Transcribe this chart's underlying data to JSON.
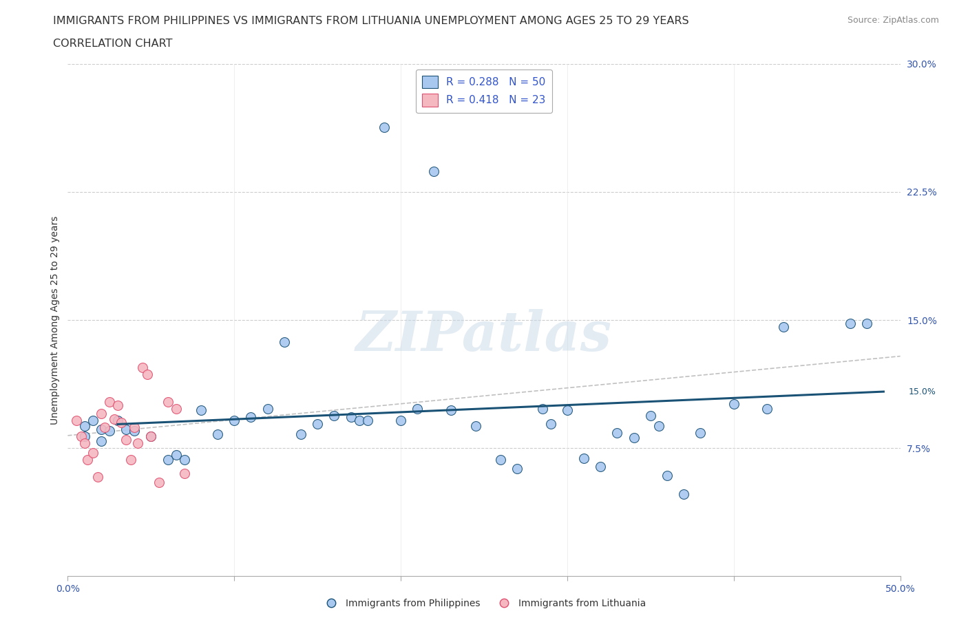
{
  "title_line1": "IMMIGRANTS FROM PHILIPPINES VS IMMIGRANTS FROM LITHUANIA UNEMPLOYMENT AMONG AGES 25 TO 29 YEARS",
  "title_line2": "CORRELATION CHART",
  "source": "Source: ZipAtlas.com",
  "ylabel": "Unemployment Among Ages 25 to 29 years",
  "xlim": [
    0.0,
    0.5
  ],
  "ylim": [
    0.0,
    0.3
  ],
  "philippines_R": 0.288,
  "philippines_N": 50,
  "lithuania_R": 0.418,
  "lithuania_N": 23,
  "philippines_color": "#a8c8f0",
  "philippines_line_color": "#1a5276",
  "lithuania_color": "#f5b7c0",
  "lithuania_line_color": "#e05070",
  "philippines_scatter_x": [
    0.01,
    0.01,
    0.015,
    0.02,
    0.02,
    0.025,
    0.03,
    0.035,
    0.04,
    0.05,
    0.06,
    0.065,
    0.07,
    0.08,
    0.09,
    0.1,
    0.11,
    0.12,
    0.13,
    0.14,
    0.15,
    0.16,
    0.17,
    0.175,
    0.18,
    0.19,
    0.2,
    0.21,
    0.22,
    0.23,
    0.245,
    0.26,
    0.27,
    0.285,
    0.29,
    0.3,
    0.31,
    0.32,
    0.33,
    0.34,
    0.35,
    0.355,
    0.36,
    0.37,
    0.38,
    0.4,
    0.42,
    0.43,
    0.47,
    0.48
  ],
  "philippines_scatter_y": [
    0.088,
    0.082,
    0.091,
    0.086,
    0.079,
    0.085,
    0.091,
    0.086,
    0.085,
    0.082,
    0.068,
    0.071,
    0.068,
    0.097,
    0.083,
    0.091,
    0.093,
    0.098,
    0.137,
    0.083,
    0.089,
    0.094,
    0.093,
    0.091,
    0.091,
    0.263,
    0.091,
    0.098,
    0.237,
    0.097,
    0.088,
    0.068,
    0.063,
    0.098,
    0.089,
    0.097,
    0.069,
    0.064,
    0.084,
    0.081,
    0.094,
    0.088,
    0.059,
    0.048,
    0.084,
    0.101,
    0.098,
    0.146,
    0.148,
    0.148
  ],
  "lithuania_scatter_x": [
    0.005,
    0.008,
    0.01,
    0.012,
    0.015,
    0.018,
    0.02,
    0.022,
    0.025,
    0.028,
    0.03,
    0.032,
    0.035,
    0.038,
    0.04,
    0.042,
    0.045,
    0.048,
    0.05,
    0.055,
    0.06,
    0.065,
    0.07
  ],
  "lithuania_scatter_y": [
    0.091,
    0.082,
    0.078,
    0.068,
    0.072,
    0.058,
    0.095,
    0.087,
    0.102,
    0.092,
    0.1,
    0.09,
    0.08,
    0.068,
    0.087,
    0.078,
    0.122,
    0.118,
    0.082,
    0.055,
    0.102,
    0.098,
    0.06
  ],
  "watermark": "ZIPatlas",
  "background_color": "#ffffff"
}
